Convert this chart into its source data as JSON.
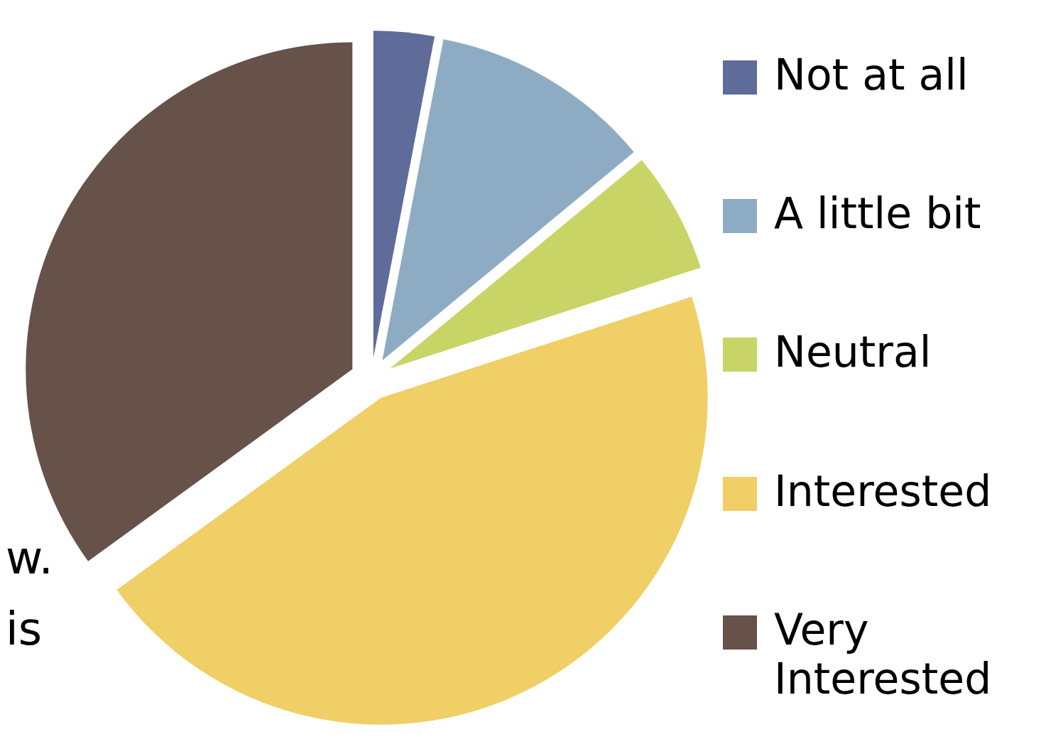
{
  "chart_data": {
    "type": "pie",
    "categories": [
      "Not at all",
      "A little bit",
      "Neutral",
      "Interested",
      "Very Interested"
    ],
    "values": [
      3,
      11,
      6,
      45,
      35
    ],
    "colors": [
      "#5f6b98",
      "#8eabc4",
      "#c8d466",
      "#efcf66",
      "#665249"
    ],
    "legend": "right",
    "annotations": [
      "w.",
      "is"
    ]
  }
}
